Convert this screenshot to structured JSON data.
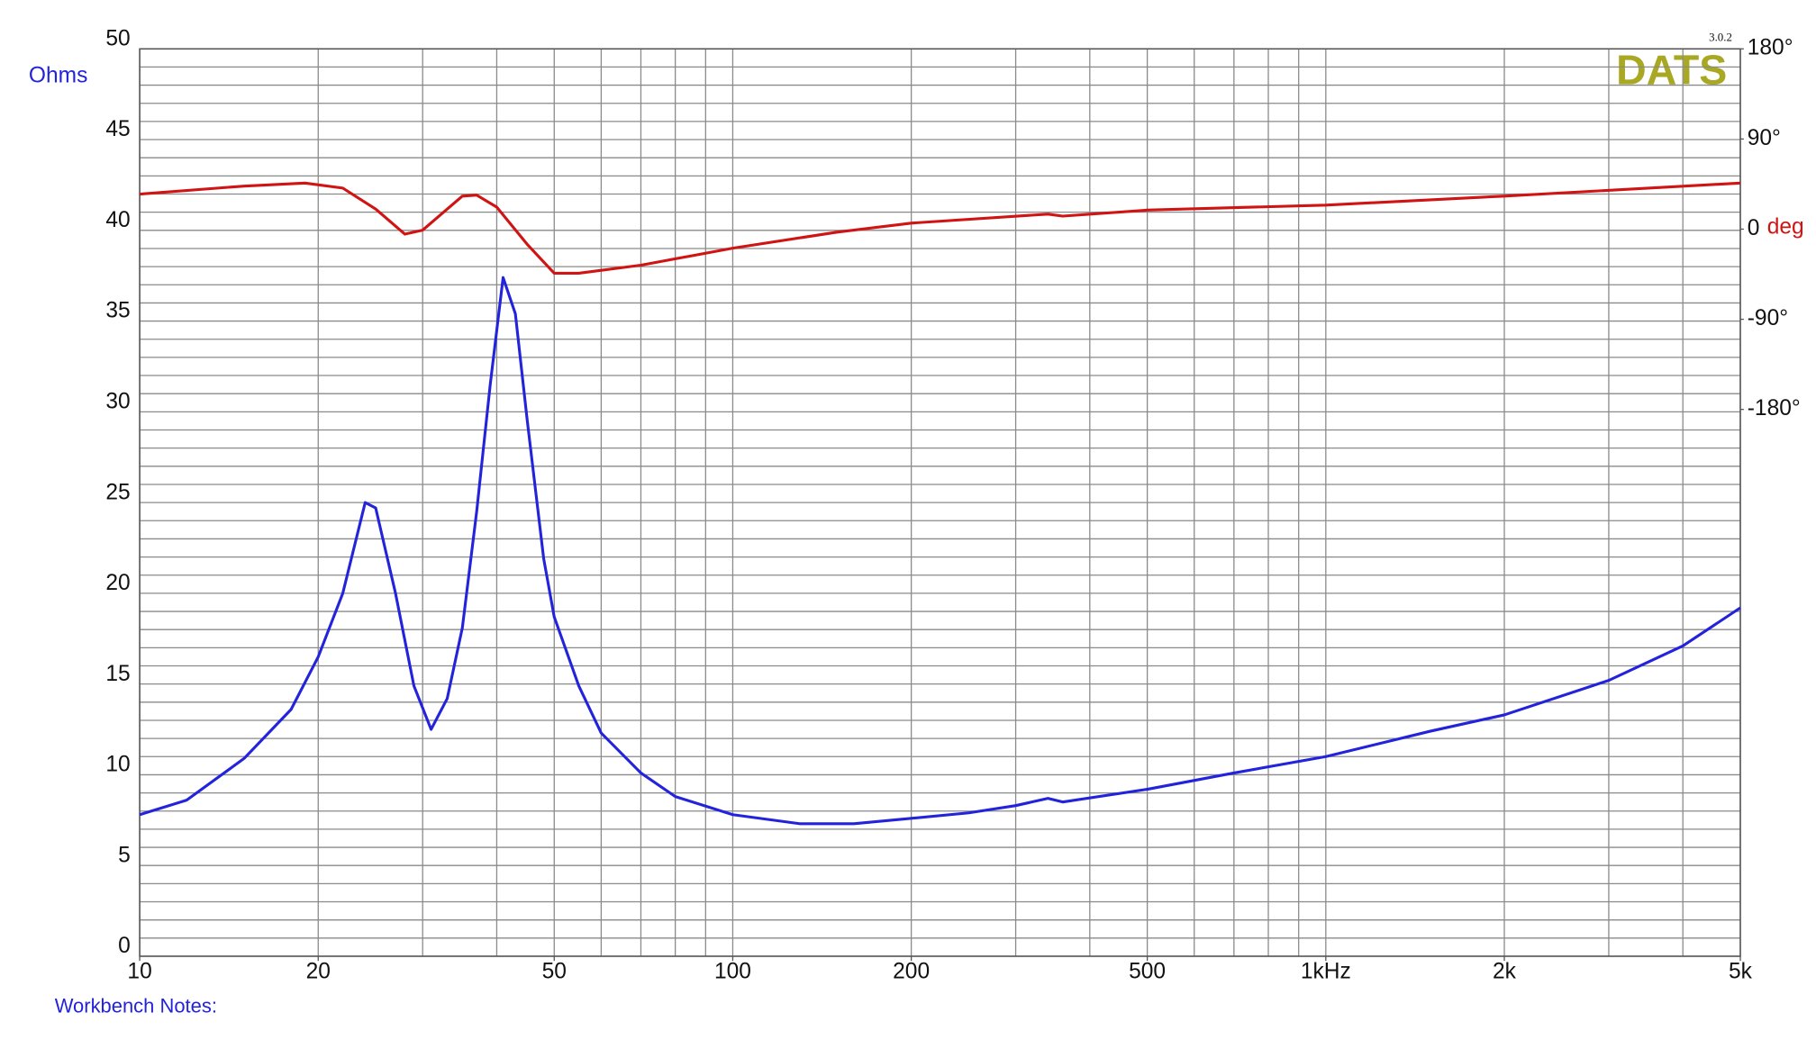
{
  "chart_data": {
    "type": "line",
    "y_label": "Ohms",
    "y2_label": "deg",
    "logo": "DATS",
    "version": "3.0.2",
    "notes_label": "Workbench Notes:",
    "xscale": "log",
    "xlim": [
      10,
      5000
    ],
    "xticks": [
      10,
      20,
      50,
      100,
      200,
      500,
      {
        "value": 1000,
        "label": "1kHz"
      },
      {
        "value": 2000,
        "label": "2k"
      },
      {
        "value": 5000,
        "label": "5k"
      }
    ],
    "xgrid": [
      10,
      20,
      30,
      40,
      50,
      60,
      70,
      80,
      90,
      100,
      200,
      300,
      400,
      500,
      600,
      700,
      800,
      900,
      1000,
      2000,
      3000,
      4000,
      5000
    ],
    "ylim": [
      0,
      50
    ],
    "yticks": [
      0,
      5,
      10,
      15,
      20,
      25,
      30,
      35,
      40,
      45,
      50
    ],
    "ygrid": [
      0,
      1,
      2,
      3,
      4,
      5,
      6,
      7,
      8,
      9,
      10,
      11,
      12,
      13,
      14,
      15,
      16,
      17,
      18,
      19,
      20,
      21,
      22,
      23,
      24,
      25,
      26,
      27,
      28,
      29,
      30,
      31,
      32,
      33,
      34,
      35,
      36,
      37,
      38,
      39,
      40,
      41,
      42,
      43,
      44,
      45,
      46,
      47,
      48,
      49,
      50
    ],
    "y2lim": [
      -726,
      180
    ],
    "y2ticks": [
      {
        "value": 180,
        "label": "180°"
      },
      {
        "value": 90,
        "label": "90°"
      },
      0,
      {
        "value": -90,
        "label": "-90°"
      },
      {
        "value": -180,
        "label": "-180°"
      }
    ],
    "series": [
      {
        "color": "#2323dc",
        "x": [
          10,
          12,
          15,
          18,
          20,
          22,
          24,
          25,
          27,
          29,
          31,
          33,
          35,
          37,
          39,
          41,
          43,
          45,
          48,
          50,
          55,
          60,
          70,
          80,
          100,
          130,
          160,
          200,
          250,
          300,
          340,
          360,
          500,
          700,
          1000,
          1500,
          2000,
          3000,
          4000,
          5000
        ],
        "values": [
          7.8,
          8.6,
          10.9,
          13.6,
          16.5,
          20,
          25,
          24.7,
          20,
          14.9,
          12.5,
          14.2,
          18.1,
          24.5,
          31.5,
          37.4,
          35.4,
          29.6,
          21.9,
          18.7,
          14.9,
          12.3,
          10.1,
          8.8,
          7.8,
          7.3,
          7.3,
          7.6,
          7.9,
          8.3,
          8.7,
          8.5,
          9.2,
          10.1,
          11,
          12.4,
          13.3,
          15.2,
          17.1,
          19.2
        ]
      },
      {
        "color": "#d01414",
        "axis": "y2",
        "x": [
          10,
          15,
          19,
          22,
          25,
          28,
          30,
          33,
          35,
          37,
          40,
          45,
          50,
          55,
          70,
          100,
          150,
          200,
          340,
          360,
          500,
          1000,
          2000,
          5000
        ],
        "values": [
          35,
          43,
          46,
          41,
          20,
          -5,
          -1,
          20,
          33,
          34,
          22,
          -15,
          -44,
          -44,
          -36,
          -19,
          -3,
          6,
          15,
          13,
          19,
          24,
          33,
          46
        ]
      }
    ]
  }
}
